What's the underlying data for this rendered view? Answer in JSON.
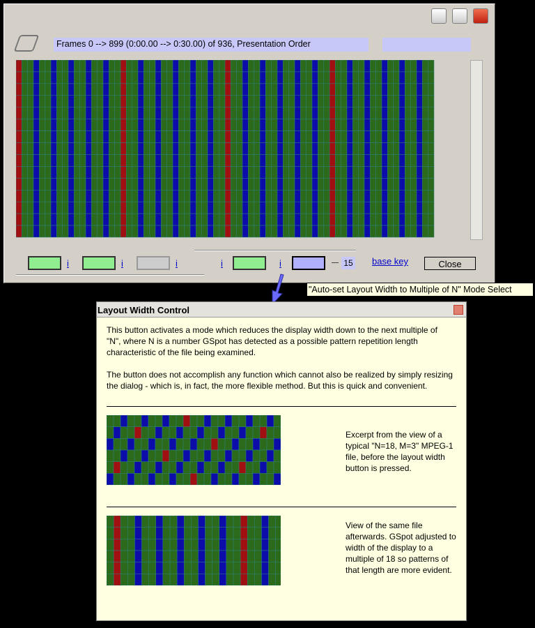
{
  "window": {
    "frames_info": "Frames 0 --> 899 (0:00.00 --> 0:30.00) of 936,  Presentation Order"
  },
  "toolbar": {
    "info_links": [
      "i",
      "i",
      "i",
      "i",
      "i"
    ],
    "n_value": "15",
    "base_key": "base key",
    "close": "Close"
  },
  "tooltip": "\"Auto-set Layout Width to Multiple of N\" Mode Select",
  "help": {
    "title": "Layout Width Control",
    "paragraphs": [
      "This button activates a mode which reduces the display width down to the next multiple of \"N\", where N is a number GSpot has detected as a possible pattern repetition length characteristic of the file being examined.",
      "The button does not accomplish any function which cannot also be realized by simply resizing the dialog - which is, in fact, the more flexible method. But this is quick and convenient."
    ],
    "captions": [
      "Excerpt from the view of a typical \"N=18, M=3\" MPEG-1 file, before the layout width button is pressed.",
      "View of the same file afterwards. GSpot adjusted to width of the display to a multiple of 18 so patterns of that length are more evident."
    ]
  }
}
